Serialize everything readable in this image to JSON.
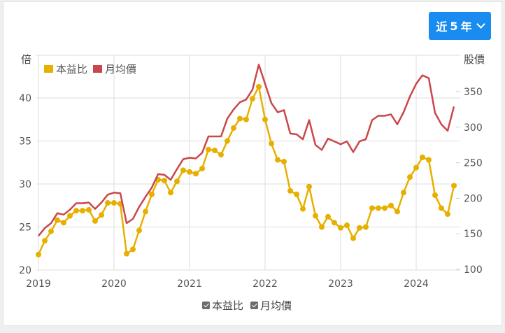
{
  "range_selector": {
    "label": "近5年",
    "prefix": "近",
    "number": "5",
    "suffix": "年"
  },
  "axes": {
    "left_title": "倍",
    "right_title": "股價"
  },
  "legend": {
    "top": [
      {
        "label": "本益比",
        "color": "#e6b000"
      },
      {
        "label": "月均價",
        "color": "#c9474a"
      }
    ],
    "bottom": [
      {
        "label": "本益比",
        "checked": true
      },
      {
        "label": "月均價",
        "checked": true
      }
    ]
  },
  "chart_data": {
    "type": "line",
    "title": "",
    "xlabel": "",
    "ylabel": "倍",
    "ylabel_right": "股價",
    "x_ticks": [
      "2019",
      "2020",
      "2021",
      "2022",
      "2023",
      "2024"
    ],
    "x_start": "2019-01",
    "x_end": "2024-07",
    "y_left_ticks": [
      20,
      25,
      30,
      35,
      40
    ],
    "y_left_range": [
      20,
      40
    ],
    "y_right_ticks": [
      100,
      150,
      200,
      250,
      300,
      350
    ],
    "y_right_range": [
      100,
      350
    ],
    "grid": true,
    "legend_position": "top-left and bottom-center",
    "series": [
      {
        "name": "本益比",
        "axis": "left",
        "color": "#e6b000",
        "markers": true,
        "values": [
          21.8,
          23.4,
          24.5,
          25.8,
          25.5,
          26.3,
          26.9,
          26.9,
          27.0,
          25.7,
          26.4,
          27.8,
          27.8,
          27.7,
          21.9,
          22.4,
          24.6,
          26.8,
          28.8,
          30.5,
          30.4,
          29.0,
          30.3,
          31.6,
          31.4,
          31.2,
          31.8,
          34.0,
          33.9,
          33.4,
          35.0,
          36.5,
          37.6,
          37.5,
          39.9,
          41.3,
          37.5,
          34.7,
          32.8,
          32.6,
          29.2,
          28.8,
          27.1,
          29.7,
          26.3,
          25.0,
          26.2,
          25.5,
          24.9,
          25.2,
          23.7,
          24.9,
          25.0,
          27.2,
          27.2,
          27.2,
          27.5,
          26.8,
          29.0,
          30.8,
          31.9,
          33.1,
          32.8,
          28.7,
          27.2,
          26.5,
          29.8
        ]
      },
      {
        "name": "月均價",
        "axis": "right",
        "color": "#c9474a",
        "markers": false,
        "values": [
          147,
          158,
          165,
          179,
          177,
          184,
          193,
          193,
          194,
          185,
          194,
          205,
          208,
          207,
          165,
          171,
          188,
          202,
          215,
          234,
          233,
          226,
          241,
          255,
          257,
          256,
          264,
          287,
          287,
          287,
          312,
          325,
          335,
          339,
          353,
          388,
          361,
          334,
          321,
          324,
          291,
          290,
          283,
          310,
          275,
          268,
          284,
          280,
          276,
          280,
          265,
          280,
          283,
          310,
          316,
          316,
          318,
          304,
          321,
          343,
          361,
          373,
          369,
          320,
          304,
          295,
          329
        ]
      }
    ]
  }
}
